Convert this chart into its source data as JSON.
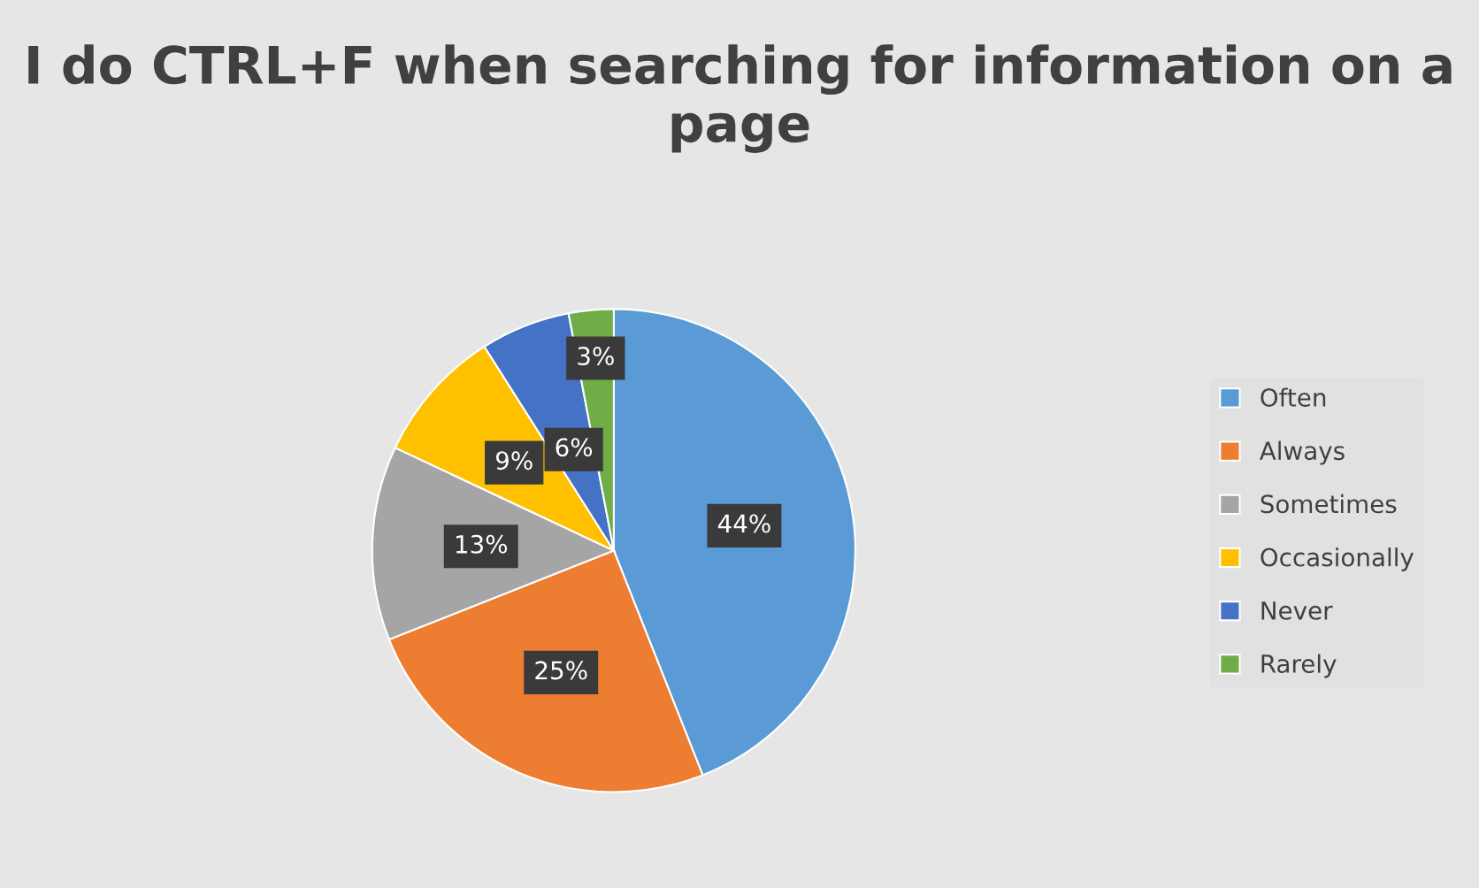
{
  "chart_data": {
    "type": "pie",
    "title": "I do CTRL+F when searching for information on a page",
    "categories": [
      "Often",
      "Always",
      "Sometimes",
      "Occasionally",
      "Never",
      "Rarely"
    ],
    "values": [
      44,
      25,
      13,
      9,
      6,
      3
    ],
    "colors": [
      "#5b9bd5",
      "#ed7d31",
      "#a5a5a5",
      "#ffc000",
      "#4472c4",
      "#70ad47"
    ],
    "value_labels": [
      "44%",
      "25%",
      "13%",
      "9%",
      "6%",
      "3%"
    ],
    "legend": "right"
  }
}
